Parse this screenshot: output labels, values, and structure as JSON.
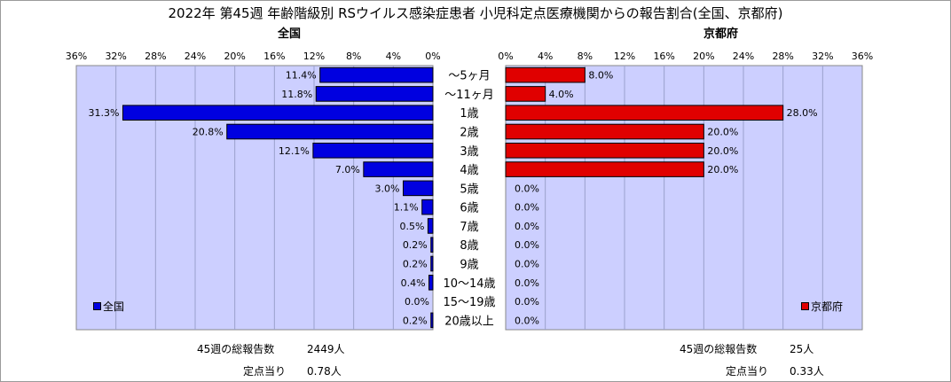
{
  "title": "2022年 第45週 年齢階級別 RSウイルス感染症患者 小児科定点医療機関からの報告割合(全国、京都府)",
  "colors": {
    "national": "#0000e0",
    "kyoto": "#e00000",
    "plot_bg": "#cccfff",
    "grid": "#9aa0cc"
  },
  "chart_data": [
    {
      "type": "bar",
      "orientation": "horizontal",
      "direction": "right-to-left",
      "title": "全国",
      "legend": "全国",
      "legend_position": "bottom-left",
      "xlim": [
        0,
        36
      ],
      "ticks": [
        "36%",
        "32%",
        "28%",
        "24%",
        "20%",
        "16%",
        "12%",
        "8%",
        "4%",
        "0%"
      ],
      "categories": [
        "～5ヶ月",
        "～11ヶ月",
        "1歳",
        "2歳",
        "3歳",
        "4歳",
        "5歳",
        "6歳",
        "7歳",
        "8歳",
        "9歳",
        "10～14歳",
        "15～19歳",
        "20歳以上"
      ],
      "values": [
        11.4,
        11.8,
        31.3,
        20.8,
        12.1,
        7.0,
        3.0,
        1.1,
        0.5,
        0.2,
        0.2,
        0.4,
        0.0,
        0.2
      ],
      "labels": [
        "11.4%",
        "11.8%",
        "31.3%",
        "20.8%",
        "12.1%",
        "7.0%",
        "3.0%",
        "1.1%",
        "0.5%",
        "0.2%",
        "0.2%",
        "0.4%",
        "0.0%",
        "0.2%"
      ]
    },
    {
      "type": "bar",
      "orientation": "horizontal",
      "direction": "left-to-right",
      "title": "京都府",
      "legend": "京都府",
      "legend_position": "bottom-right",
      "xlim": [
        0,
        36
      ],
      "ticks": [
        "0%",
        "4%",
        "8%",
        "12%",
        "16%",
        "20%",
        "24%",
        "28%",
        "32%",
        "36%"
      ],
      "categories": [
        "～5ヶ月",
        "～11ヶ月",
        "1歳",
        "2歳",
        "3歳",
        "4歳",
        "5歳",
        "6歳",
        "7歳",
        "8歳",
        "9歳",
        "10～14歳",
        "15～19歳",
        "20歳以上"
      ],
      "values": [
        8.0,
        4.0,
        28.0,
        20.0,
        20.0,
        20.0,
        0.0,
        0.0,
        0.0,
        0.0,
        0.0,
        0.0,
        0.0,
        0.0
      ],
      "labels": [
        "8.0%",
        "4.0%",
        "28.0%",
        "20.0%",
        "20.0%",
        "20.0%",
        "0.0%",
        "0.0%",
        "0.0%",
        "0.0%",
        "0.0%",
        "0.0%",
        "0.0%",
        "0.0%"
      ]
    }
  ],
  "stats": {
    "national_total_label": "45週の総報告数",
    "national_total_value": "2449人",
    "national_per_label": "定点当り",
    "national_per_value": "0.78人",
    "kyoto_total_label": "45週の総報告数",
    "kyoto_total_value": "25人",
    "kyoto_per_label": "定点当り",
    "kyoto_per_value": "0.33人"
  }
}
